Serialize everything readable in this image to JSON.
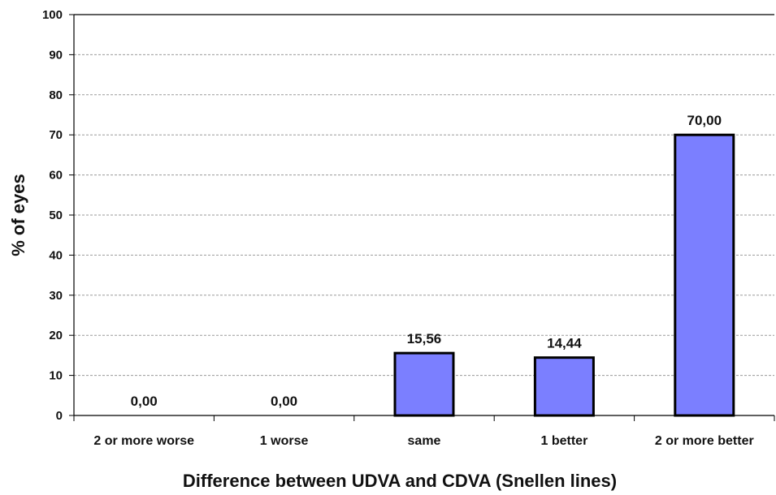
{
  "chart_data": {
    "type": "bar",
    "categories": [
      "2 or more worse",
      "1 worse",
      "same",
      "1 better",
      "2 or more better"
    ],
    "values": [
      0,
      0,
      15.56,
      14.44,
      70
    ],
    "data_labels": [
      "0,00",
      "0,00",
      "15,56",
      "14,44",
      "70,00"
    ],
    "xlabel": "Difference between UDVA and CDVA (Snellen lines)",
    "ylabel": "% of eyes",
    "ylim": [
      0,
      100
    ],
    "yticks": [
      0,
      10,
      20,
      30,
      40,
      50,
      60,
      70,
      80,
      90,
      100
    ],
    "grid": true,
    "bar_color": "#7b7fff",
    "bar_edge_color": "#000000"
  }
}
